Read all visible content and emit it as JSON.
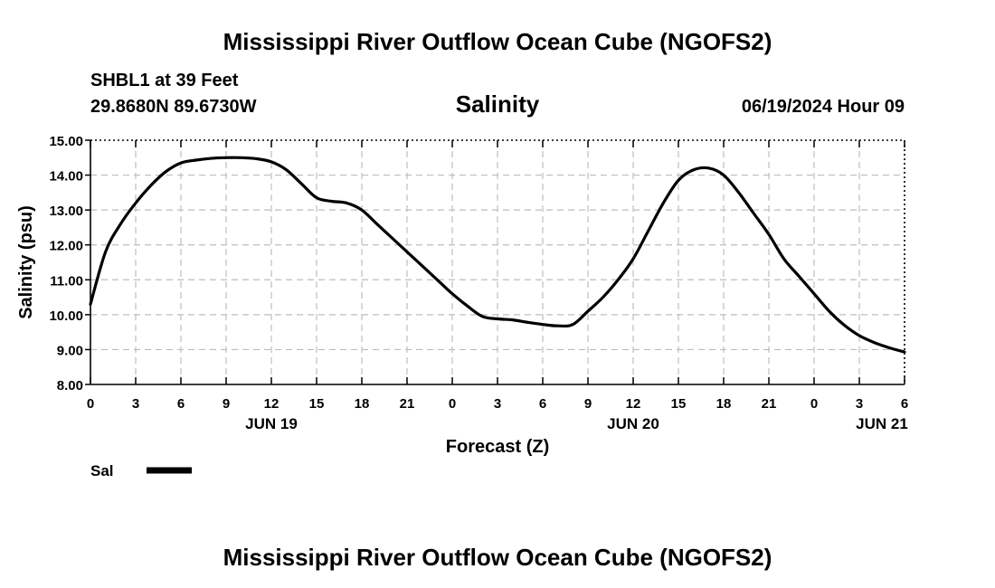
{
  "page_title": "Mississippi River Outflow Ocean Cube (NGOFS2)",
  "footer_title": "Mississippi River Outflow Ocean Cube (NGOFS2)",
  "station": {
    "label": "SHBL1 at 39 Feet",
    "coords": "29.8680N  89.6730W"
  },
  "timestamp": "06/19/2024 Hour 09",
  "chart_data": {
    "type": "line",
    "title": "Salinity",
    "xlabel": "Forecast (Z)",
    "ylabel": "Salinity (psu)",
    "xlim": [
      0,
      54
    ],
    "ylim": [
      8,
      15
    ],
    "yticks": [
      8,
      9,
      10,
      11,
      12,
      13,
      14,
      15
    ],
    "ytick_labels": [
      "8.00",
      "9.00",
      "10.00",
      "11.00",
      "12.00",
      "13.00",
      "14.00",
      "15.00"
    ],
    "xticks": [
      0,
      3,
      6,
      9,
      12,
      15,
      18,
      21,
      24,
      27,
      30,
      33,
      36,
      39,
      42,
      45,
      48,
      51,
      54
    ],
    "xtick_labels": [
      "0",
      "3",
      "6",
      "9",
      "12",
      "15",
      "18",
      "21",
      "0",
      "3",
      "6",
      "9",
      "12",
      "15",
      "18",
      "21",
      "0",
      "3",
      "6"
    ],
    "day_labels": [
      {
        "x": 12,
        "label": "JUN 19"
      },
      {
        "x": 36,
        "label": "JUN 20"
      },
      {
        "x": 52.5,
        "label": "JUN 21"
      }
    ],
    "grid": true,
    "legend": "bottom-left",
    "series": [
      {
        "name": "Sal",
        "color": "#000000",
        "x": [
          0,
          1,
          2,
          3,
          4,
          5,
          6,
          7,
          8,
          9,
          10,
          11,
          12,
          13,
          14,
          15,
          16,
          17,
          18,
          19,
          20,
          21,
          22,
          23,
          24,
          25,
          26,
          27,
          28,
          29,
          30,
          31,
          32,
          33,
          34,
          35,
          36,
          37,
          38,
          39,
          40,
          41,
          42,
          43,
          44,
          45,
          46,
          47,
          48,
          49,
          50,
          51,
          52,
          53,
          54
        ],
        "values": [
          10.3,
          11.8,
          12.6,
          13.2,
          13.7,
          14.1,
          14.35,
          14.43,
          14.48,
          14.5,
          14.5,
          14.47,
          14.38,
          14.15,
          13.75,
          13.35,
          13.25,
          13.2,
          13.0,
          12.6,
          12.2,
          11.8,
          11.4,
          11.0,
          10.6,
          10.25,
          9.95,
          9.88,
          9.85,
          9.78,
          9.72,
          9.68,
          9.72,
          10.1,
          10.5,
          11.0,
          11.6,
          12.4,
          13.2,
          13.85,
          14.15,
          14.2,
          14.0,
          13.5,
          12.9,
          12.3,
          11.6,
          11.1,
          10.6,
          10.1,
          9.7,
          9.4,
          9.2,
          9.05,
          8.93
        ]
      }
    ]
  },
  "legend_items": [
    {
      "label": "Sal",
      "color": "#000000"
    }
  ]
}
